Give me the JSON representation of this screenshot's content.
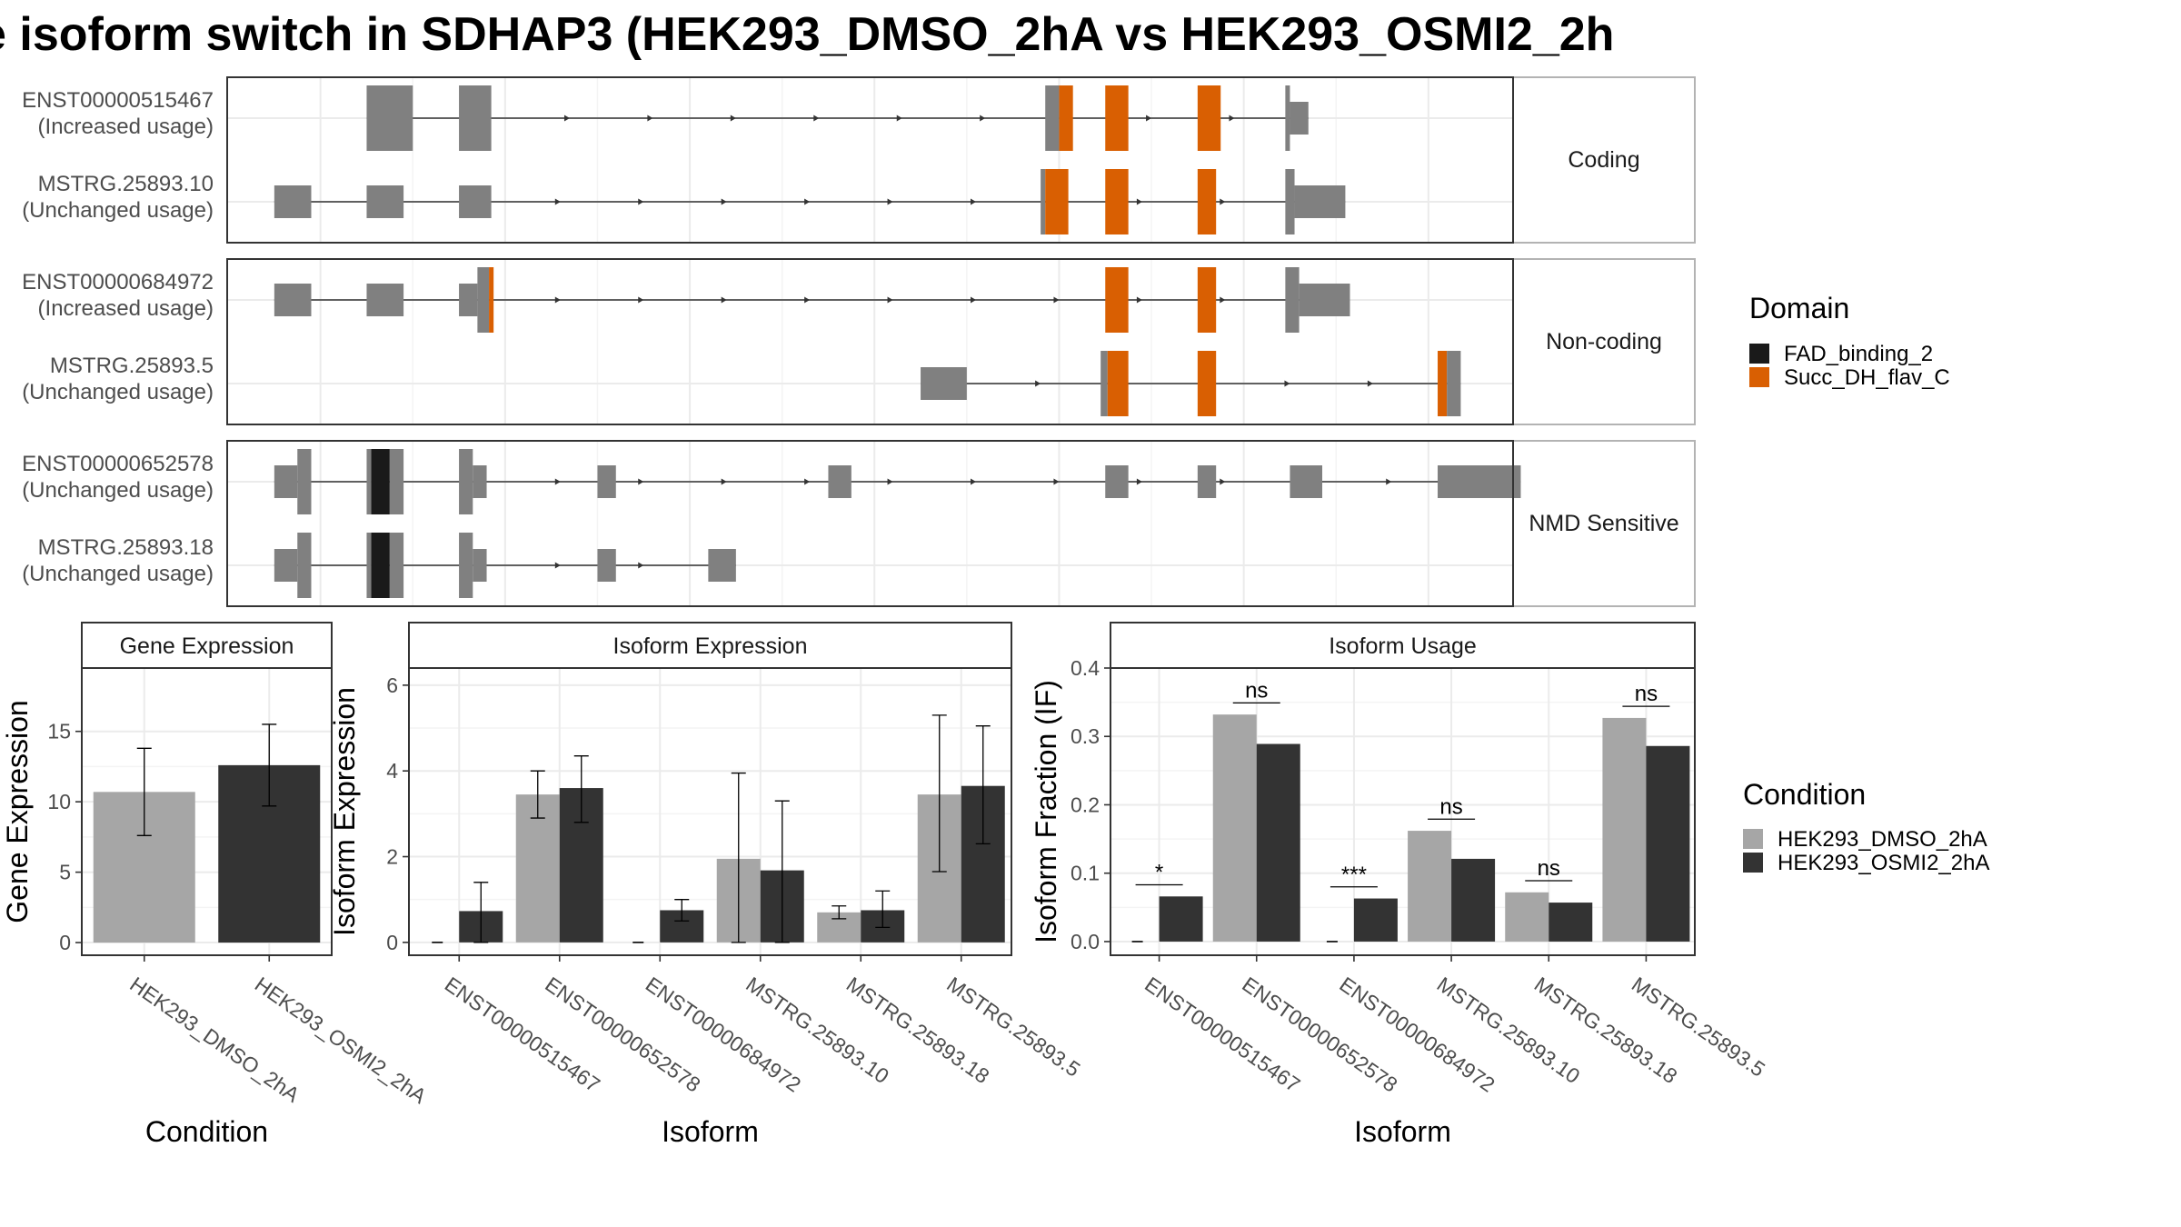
{
  "title": "e isoform switch in SDHAP3 (HEK293_DMSO_2hA vs HEK293_OSMI2_2h",
  "colors": {
    "exon": "#808080",
    "FAD_binding_2": "#1a1a1a",
    "Succ_DH_flav_C": "#d95f02",
    "dmso": "#a6a6a6",
    "osmi": "#333333",
    "grid": "#ebebeb"
  },
  "structure": {
    "facets": [
      {
        "label": "Coding",
        "transcripts": [
          {
            "name": "ENST00000515467",
            "usage": "(Increased usage)",
            "exons": [
              [
                1,
                2,
                "n"
              ],
              [
                3,
                3.7,
                "n"
              ],
              [
                15.7,
                16,
                "n"
              ],
              [
                16,
                16.3,
                "o"
              ],
              [
                17,
                17.5,
                "o"
              ],
              [
                19,
                19.5,
                "o"
              ],
              [
                20.9,
                21,
                "n"
              ],
              [
                21,
                21.4,
                "u"
              ]
            ]
          },
          {
            "name": "MSTRG.25893.10",
            "usage": "(Unchanged usage)",
            "exons": [
              [
                -1,
                -0.2,
                "u"
              ],
              [
                1,
                1.8,
                "u"
              ],
              [
                3,
                3.7,
                "u"
              ],
              [
                15.6,
                15.7,
                "n"
              ],
              [
                15.7,
                16.2,
                "o"
              ],
              [
                17,
                17.5,
                "o"
              ],
              [
                19,
                19.4,
                "o"
              ],
              [
                20.9,
                21.1,
                "n"
              ],
              [
                21.1,
                22.2,
                "u"
              ]
            ]
          }
        ]
      },
      {
        "label": "Non-coding",
        "transcripts": [
          {
            "name": "ENST00000684972",
            "usage": "(Increased usage)",
            "exons": [
              [
                -1,
                -0.2,
                "u"
              ],
              [
                1,
                1.8,
                "u"
              ],
              [
                3,
                3.4,
                "u"
              ],
              [
                3.4,
                3.65,
                "n"
              ],
              [
                3.65,
                3.75,
                "o"
              ],
              [
                17,
                17.5,
                "o"
              ],
              [
                19,
                19.4,
                "o"
              ],
              [
                20.9,
                21.2,
                "n"
              ],
              [
                21.2,
                22.3,
                "u"
              ]
            ]
          },
          {
            "name": "MSTRG.25893.5",
            "usage": "(Unchanged usage)",
            "exons": [
              [
                13,
                14,
                "u"
              ],
              [
                16.9,
                17.05,
                "n"
              ],
              [
                17.05,
                17.5,
                "o"
              ],
              [
                19,
                19.4,
                "o"
              ],
              [
                24.2,
                24.4,
                "o"
              ],
              [
                24.4,
                24.7,
                "n"
              ]
            ]
          }
        ]
      },
      {
        "label": "NMD Sensitive",
        "transcripts": [
          {
            "name": "ENST00000652578",
            "usage": "(Unchanged usage)",
            "exons": [
              [
                -1,
                -0.5,
                "u"
              ],
              [
                -0.5,
                -0.2,
                "n"
              ],
              [
                1,
                1.1,
                "n"
              ],
              [
                1.1,
                1.5,
                "f"
              ],
              [
                1.5,
                1.8,
                "n"
              ],
              [
                3,
                3.3,
                "n"
              ],
              [
                3.3,
                3.6,
                "u"
              ],
              [
                6,
                6.4,
                "u"
              ],
              [
                11,
                11.5,
                "u"
              ],
              [
                17,
                17.5,
                "u"
              ],
              [
                19,
                19.4,
                "u"
              ],
              [
                21,
                21.7,
                "u"
              ],
              [
                24.2,
                26,
                "u"
              ]
            ]
          },
          {
            "name": "MSTRG.25893.18",
            "usage": "(Unchanged usage)",
            "exons": [
              [
                -1,
                -0.5,
                "u"
              ],
              [
                -0.5,
                -0.2,
                "n"
              ],
              [
                1,
                1.1,
                "n"
              ],
              [
                1.1,
                1.5,
                "f"
              ],
              [
                1.5,
                1.8,
                "n"
              ],
              [
                3,
                3.3,
                "n"
              ],
              [
                3.3,
                3.6,
                "u"
              ],
              [
                6,
                6.4,
                "u"
              ],
              [
                8.4,
                9,
                "u"
              ]
            ]
          }
        ]
      }
    ]
  },
  "domain_legend": {
    "title": "Domain",
    "items": [
      "FAD_binding_2",
      "Succ_DH_flav_C"
    ]
  },
  "condition_legend": {
    "title": "Condition",
    "items": [
      "HEK293_DMSO_2hA",
      "HEK293_OSMI2_2hA"
    ]
  },
  "chart_data": [
    {
      "type": "bar",
      "title": "Gene Expression",
      "xlabel": "Condition",
      "ylabel": "Gene Expression",
      "categories": [
        "HEK293_DMSO_2hA",
        "HEK293_OSMI2_2hA"
      ],
      "values": [
        10.7,
        12.6
      ],
      "err_low": [
        7.6,
        9.7
      ],
      "err_high": [
        13.8,
        15.5
      ],
      "ylim": [
        -0.9,
        19.5
      ],
      "yticks": [
        0,
        5,
        10,
        15
      ]
    },
    {
      "type": "bar",
      "title": "Isoform Expression",
      "xlabel": "Isoform",
      "ylabel": "Isoform Expression",
      "categories": [
        "ENST00000515467",
        "ENST00000652578",
        "ENST00000684972",
        "MSTRG.25893.10",
        "MSTRG.25893.18",
        "MSTRG.25893.5"
      ],
      "series": [
        {
          "name": "HEK293_DMSO_2hA",
          "values": [
            0,
            3.45,
            0,
            1.95,
            0.7,
            3.45
          ],
          "err_low": [
            0,
            2.9,
            0,
            0,
            0.55,
            1.65
          ],
          "err_high": [
            0,
            4.0,
            0,
            3.95,
            0.85,
            5.3
          ]
        },
        {
          "name": "HEK293_OSMI2_2hA",
          "values": [
            0.73,
            3.6,
            0.75,
            1.68,
            0.75,
            3.65
          ],
          "err_low": [
            0,
            2.8,
            0.5,
            0,
            0.35,
            2.3
          ],
          "err_high": [
            1.4,
            4.35,
            1.0,
            3.3,
            1.2,
            5.05
          ]
        }
      ],
      "ylim": [
        -0.3,
        6.4
      ],
      "yticks": [
        0,
        2,
        4,
        6
      ]
    },
    {
      "type": "bar",
      "title": "Isoform Usage",
      "xlabel": "Isoform",
      "ylabel": "Isoform Fraction (IF)",
      "categories": [
        "ENST00000515467",
        "ENST00000652578",
        "ENST00000684972",
        "MSTRG.25893.10",
        "MSTRG.25893.18",
        "MSTRG.25893.5"
      ],
      "series": [
        {
          "name": "HEK293_DMSO_2hA",
          "values": [
            0,
            0.332,
            0,
            0.162,
            0.072,
            0.327
          ]
        },
        {
          "name": "HEK293_OSMI2_2hA",
          "values": [
            0.066,
            0.289,
            0.063,
            0.121,
            0.057,
            0.286
          ]
        }
      ],
      "significance": [
        "*",
        "ns",
        "***",
        "ns",
        "ns",
        "ns"
      ],
      "sig_level": [
        0.083,
        0.349,
        0.08,
        0.179,
        0.089,
        0.344
      ],
      "ylim": [
        -0.02,
        0.4
      ],
      "yticks": [
        0.0,
        0.1,
        0.2,
        0.3,
        0.4
      ]
    }
  ]
}
